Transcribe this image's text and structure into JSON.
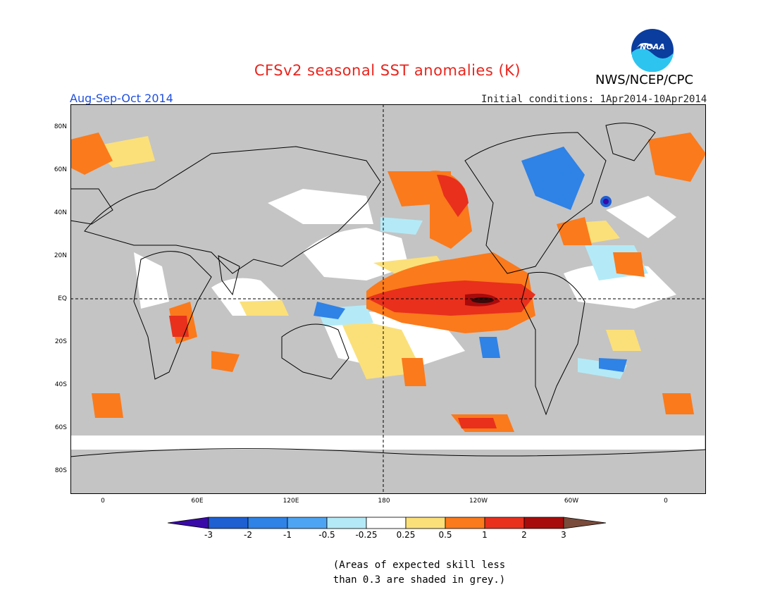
{
  "title": "CFSv2 seasonal SST anomalies (K)",
  "agency": "NWS/NCEP/CPC",
  "logo_text": "NOAA",
  "period": "Aug-Sep-Oct 2014",
  "initial_conditions": "Initial conditions: 1Apr2014-10Apr2014",
  "lat_labels": [
    "80N",
    "60N",
    "40N",
    "20N",
    "EQ",
    "20S",
    "40S",
    "60S",
    "80S"
  ],
  "lon_labels": [
    "0",
    "60E",
    "120E",
    "180",
    "120W",
    "60W",
    "0"
  ],
  "colorbar": {
    "ticks": [
      "-3",
      "-2",
      "-1",
      "-0.5",
      "-0.25",
      "0.25",
      "0.5",
      "1",
      "2",
      "3"
    ],
    "colors": [
      "#3a0aa8",
      "#1e5fd2",
      "#2f82e6",
      "#4da4f2",
      "#b4eaf7",
      "#ffffff",
      "#fbe07a",
      "#fb7a1b",
      "#e8301d",
      "#a80b0b",
      "#7a4b3a"
    ]
  },
  "note": [
    "(Areas of expected skill less",
    "than 0.3 are shaded in grey.)"
  ],
  "colors": {
    "title": "#e8251d",
    "period": "#1f4fe0",
    "grey_mask": "#c4c4c4"
  }
}
